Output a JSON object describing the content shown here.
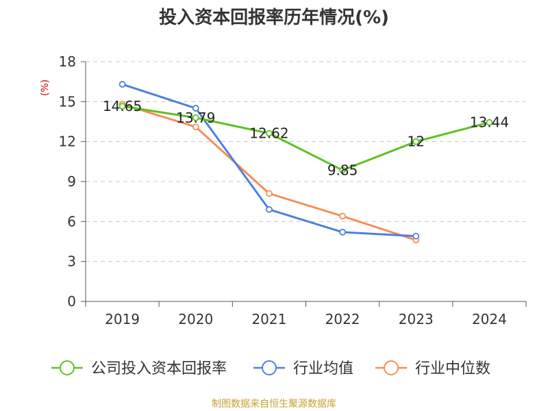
{
  "chart_data": {
    "type": "line",
    "title": "投入资本回报率历年情况(%)",
    "ylabel": "(%)",
    "xlabel": "",
    "categories": [
      "2019",
      "2020",
      "2021",
      "2022",
      "2023",
      "2024"
    ],
    "ylim": [
      0,
      18
    ],
    "yticks": [
      0,
      3,
      6,
      9,
      12,
      15,
      18
    ],
    "grid": true,
    "legend_position": "bottom",
    "series": [
      {
        "name": "公司投入资本回报率",
        "color": "#5bc322",
        "values": [
          14.65,
          13.79,
          12.62,
          9.85,
          12,
          13.44
        ],
        "labels": [
          "14.65",
          "13.79",
          "12.62",
          "9.85",
          "12",
          "13.44"
        ]
      },
      {
        "name": "行业均值",
        "color": "#4e7fde",
        "values": [
          16.3,
          14.5,
          6.9,
          5.2,
          4.9,
          null
        ]
      },
      {
        "name": "行业中位数",
        "color": "#f78d56",
        "values": [
          14.8,
          13.1,
          8.1,
          6.4,
          4.6,
          null
        ]
      }
    ],
    "source": "制图数据来自恒生聚源数据库"
  }
}
